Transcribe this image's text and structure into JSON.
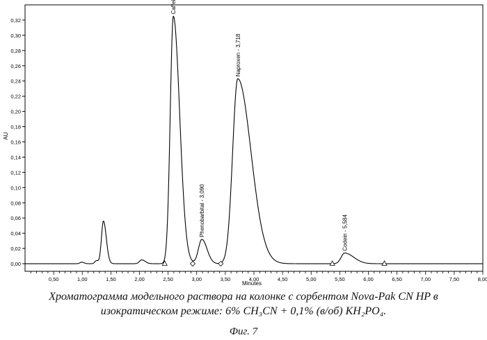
{
  "chart_data": {
    "type": "line",
    "title": "",
    "xlabel": "Minutes",
    "ylabel": "AU",
    "xlim": [
      0,
      8.0
    ],
    "ylim": [
      -0.01,
      0.34
    ],
    "x_ticks": [
      "0,50",
      "1,00",
      "1,50",
      "2,00",
      "2,50",
      "3,00",
      "3,50",
      "4,00",
      "4,50",
      "5,00",
      "5,50",
      "6,00",
      "6,50",
      "7,00",
      "7,50",
      "8,00"
    ],
    "y_ticks": [
      "0,00",
      "0,02",
      "0,04",
      "0,06",
      "0,08",
      "0,10",
      "0,12",
      "0,14",
      "0,16",
      "0,18",
      "0,20",
      "0,22",
      "0,24",
      "0,26",
      "0,28",
      "0,30",
      "0,32"
    ],
    "grid": false,
    "peaks": [
      {
        "label": "",
        "rt": 1.37,
        "height": 0.056
      },
      {
        "label": "Caffein - 2,592",
        "rt": 2.592,
        "height": 0.325
      },
      {
        "label": "Phenobarbital - 3,090",
        "rt": 3.09,
        "height": 0.032
      },
      {
        "label": "Naproxen - 3,718",
        "rt": 3.718,
        "height": 0.243
      },
      {
        "label": "Codein - 5,584",
        "rt": 5.584,
        "height": 0.014
      }
    ],
    "baseline_markers": [
      {
        "x": 2.44,
        "shape": "triangle"
      },
      {
        "x": 2.93,
        "shape": "diamond"
      },
      {
        "x": 3.42,
        "shape": "diamond"
      },
      {
        "x": 5.37,
        "shape": "triangle"
      },
      {
        "x": 6.28,
        "shape": "triangle"
      }
    ]
  },
  "caption": {
    "line1": "Хроматограмма модельного раствора на колонке с сорбентом Nova-Pak CN HP в",
    "line2": "изократическом режиме: 6% CH₃CN + 0,1% (в/об) KH₂PO₄.",
    "figure": "Фиг. 7"
  }
}
